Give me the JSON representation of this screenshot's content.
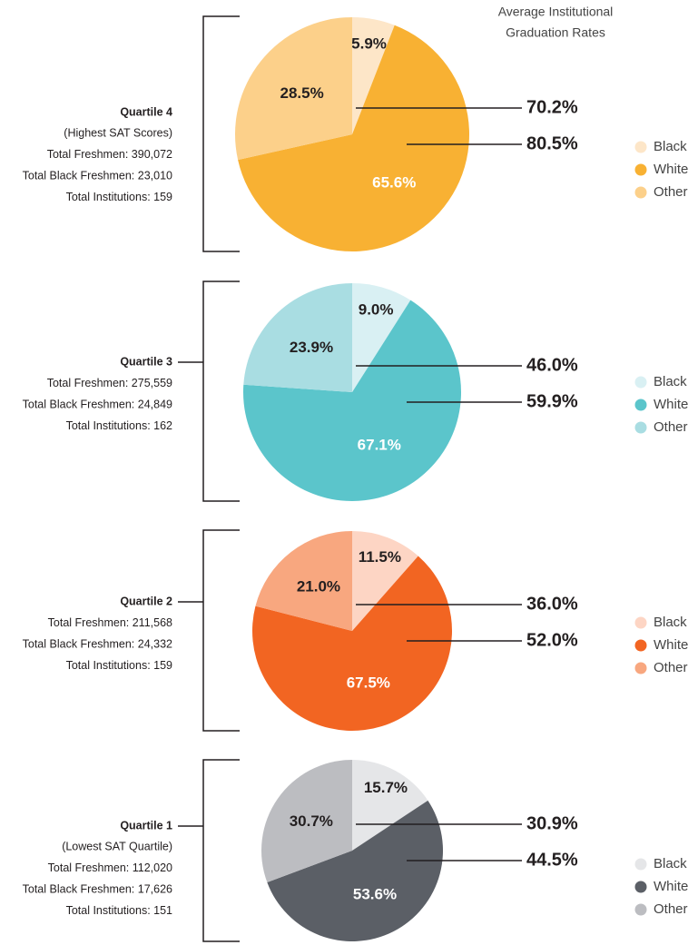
{
  "header": [
    "Average Institutional",
    "Graduation Rates"
  ],
  "chart_data": [
    {
      "type": "pie",
      "title": "Quartile 4",
      "subtitle": "(Highest SAT Scores)",
      "annotations": [
        "Total Freshmen: 390,072",
        "Total Black Freshmen: 23,010",
        "Total Institutions: 159"
      ],
      "categories": [
        "Black",
        "White",
        "Other"
      ],
      "values": [
        5.9,
        65.6,
        28.5
      ],
      "value_labels": [
        "5.9%",
        "65.6%",
        "28.5%"
      ],
      "colors": [
        "#fde6c8",
        "#f8b133",
        "#fcd08a"
      ],
      "graduation_rates": {
        "values": [
          70.2,
          80.5
        ],
        "value_labels": [
          "70.2%",
          "80.5%"
        ]
      }
    },
    {
      "type": "pie",
      "title": "Quartile 3",
      "annotations": [
        "Total Freshmen: 275,559",
        "Total Black Freshmen: 24,849",
        "Total Institutions: 162"
      ],
      "categories": [
        "Black",
        "White",
        "Other"
      ],
      "values": [
        9.0,
        67.1,
        23.9
      ],
      "value_labels": [
        "9.0%",
        "67.1%",
        "23.9%"
      ],
      "colors": [
        "#d9f0f3",
        "#5bc5cb",
        "#a9dde2"
      ],
      "graduation_rates": {
        "values": [
          46.0,
          59.9
        ],
        "value_labels": [
          "46.0%",
          "59.9%"
        ]
      }
    },
    {
      "type": "pie",
      "title": "Quartile 2",
      "annotations": [
        "Total Freshmen: 211,568",
        "Total Black Freshmen: 24,332",
        "Total Institutions: 159"
      ],
      "categories": [
        "Black",
        "White",
        "Other"
      ],
      "values": [
        11.5,
        67.5,
        21.0
      ],
      "value_labels": [
        "11.5%",
        "67.5%",
        "21.0%"
      ],
      "colors": [
        "#fdd5c4",
        "#f26522",
        "#f8a77f"
      ],
      "graduation_rates": {
        "values": [
          36.0,
          52.0
        ],
        "value_labels": [
          "36.0%",
          "52.0%"
        ]
      }
    },
    {
      "type": "pie",
      "title": "Quartile 1",
      "subtitle": "(Lowest SAT Quartile)",
      "annotations": [
        "Total Freshmen: 112,020",
        "Total Black Freshmen: 17,626",
        "Total Institutions: 151"
      ],
      "categories": [
        "Black",
        "White",
        "Other"
      ],
      "values": [
        15.7,
        53.6,
        30.7
      ],
      "value_labels": [
        "15.7%",
        "53.6%",
        "30.7%"
      ],
      "colors": [
        "#e5e6e8",
        "#5b5f66",
        "#bcbdc1"
      ],
      "graduation_rates": {
        "values": [
          30.9,
          44.5
        ],
        "value_labels": [
          "30.9%",
          "44.5%"
        ]
      }
    }
  ]
}
